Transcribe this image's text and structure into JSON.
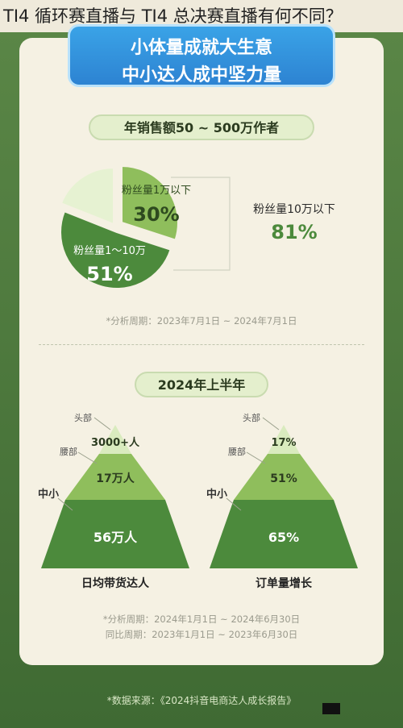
{
  "headline": "TI4 循环赛直播与 TI4 总决赛直播有何不同？",
  "banner": {
    "line1": "小体量成就大生意",
    "line2": "中小达人成中坚力量"
  },
  "section1": {
    "pill": "年销售额50 ~ 500万作者",
    "note": "*分析周期：2023年7月1日 ~ 2024年7月1日",
    "side_label": "粉丝量10万以下",
    "side_value": "81%"
  },
  "section2": {
    "pill": "2024年上半年",
    "note1": "*分析周期：2024年1月1日 ~ 2024年6月30日",
    "note2": "同比周期：2023年1月1日 ~ 2023年6月30日"
  },
  "source": "*数据来源：《2024抖音电商达人成长报告》",
  "colors": {
    "dark_green": "#4c8a3c",
    "mid_green": "#8fbe5c",
    "light_green": "#d9ebbe",
    "faint_green": "#e6f2d2"
  },
  "chart_data": [
    {
      "type": "pie",
      "slices": [
        {
          "label": "粉丝量1万以下",
          "value": 30,
          "value_label": "30%"
        },
        {
          "label": "粉丝量1～10万",
          "value": 51,
          "value_label": "51%"
        },
        {
          "label": "",
          "value": 19,
          "value_label": ""
        }
      ]
    },
    {
      "type": "pyramid",
      "title": "日均带货达人",
      "levels": [
        {
          "name": "头部",
          "value_label": "3000+人"
        },
        {
          "name": "腰部",
          "value_label": "17万人"
        },
        {
          "name": "中小",
          "value_label": "56万人"
        }
      ]
    },
    {
      "type": "pyramid",
      "title": "订单量增长",
      "levels": [
        {
          "name": "头部",
          "value_label": "17%"
        },
        {
          "name": "腰部",
          "value_label": "51%"
        },
        {
          "name": "中小",
          "value_label": "65%"
        }
      ]
    }
  ]
}
